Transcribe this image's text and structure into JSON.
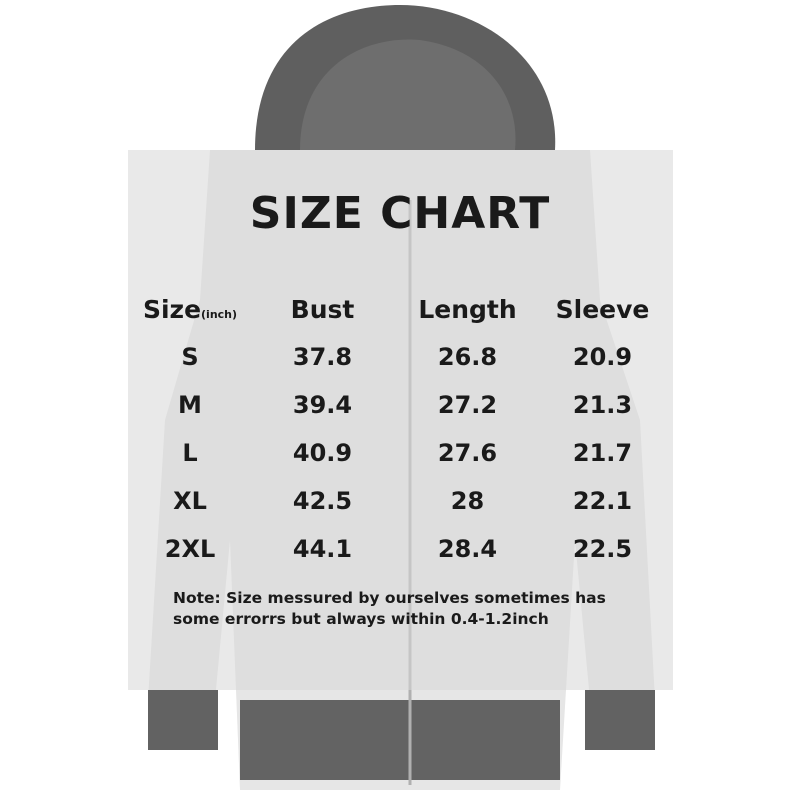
{
  "title": "SIZE CHART",
  "table": {
    "headers": [
      {
        "label": "Size",
        "unit": "(inch)"
      },
      {
        "label": "Bust"
      },
      {
        "label": "Length"
      },
      {
        "label": "Sleeve"
      }
    ],
    "rows": [
      [
        "S",
        "37.8",
        "26.8",
        "20.9"
      ],
      [
        "M",
        "39.4",
        "27.2",
        "21.3"
      ],
      [
        "L",
        "40.9",
        "27.6",
        "21.7"
      ],
      [
        "XL",
        "42.5",
        "28",
        "22.1"
      ],
      [
        "2XL",
        "44.1",
        "28.4",
        "22.5"
      ]
    ]
  },
  "note": {
    "line1": "Note:  Size messured by ourselves sometimes has",
    "line2": "some errorrs but always within 0.4-1.2inch"
  },
  "colors": {
    "hood": "#5f5f5f",
    "body": "#e6e6e6",
    "cuff": "#626262"
  }
}
